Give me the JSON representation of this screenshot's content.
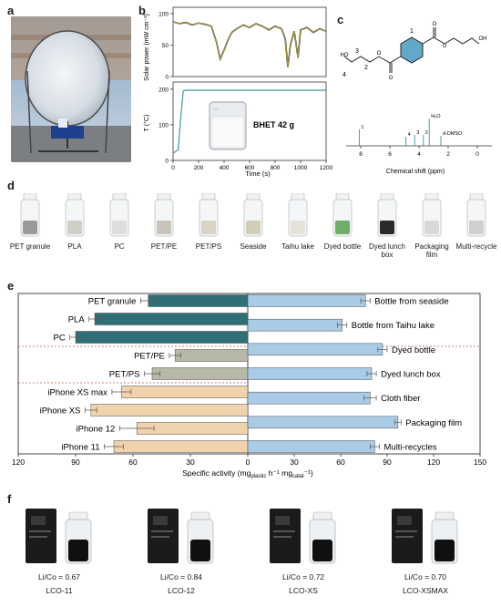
{
  "panels": {
    "a": "a",
    "b": "b",
    "c": "c",
    "d": "d",
    "e": "e",
    "f": "f"
  },
  "panel_b": {
    "top_ylabel": "Solar power (mW cm⁻²)",
    "top_yticks": [
      "100",
      "50",
      "0"
    ],
    "bottom_ylabel": "T (°C)",
    "bottom_yticks": [
      "200",
      "100",
      "0"
    ],
    "xticks": [
      "0",
      "200",
      "400",
      "600",
      "800",
      "1000",
      "1200"
    ],
    "xlabel": "Time (s)",
    "inset_label": "BHET 42 g"
  },
  "panel_c": {
    "atom_labels": [
      "1",
      "2",
      "3",
      "4"
    ],
    "peak_labels": [
      "1",
      "4",
      "3",
      "2",
      "H₂O",
      "d-DMSO"
    ],
    "xticks": [
      "8",
      "6",
      "4",
      "2",
      "0"
    ],
    "xlabel": "Chemical shift (ppm)"
  },
  "panel_d": {
    "vials": [
      "PET granule",
      "PLA",
      "PC",
      "PET/PE",
      "PET/PS",
      "Seaside",
      "Taihu lake",
      "Dyed bottle",
      "Dyed lunch box",
      "Packaging film",
      "Multi-recycle"
    ]
  },
  "chart_data": [
    {
      "type": "line",
      "panel": "b-top",
      "xlabel": "Time (s)",
      "ylabel": "Solar power (mW cm⁻²)",
      "xlim": [
        0,
        1200
      ],
      "ylim": [
        0,
        110
      ],
      "series": [
        {
          "x": [
            0,
            50,
            100,
            150,
            200,
            250,
            300,
            340,
            370,
            400,
            430,
            460,
            500,
            550,
            600,
            650,
            700,
            750,
            800,
            850,
            880,
            900,
            920,
            950,
            980,
            1000,
            1050,
            1100,
            1150,
            1200
          ],
          "values": [
            87,
            84,
            86,
            82,
            85,
            83,
            80,
            55,
            28,
            42,
            58,
            70,
            76,
            82,
            78,
            84,
            80,
            74,
            80,
            76,
            60,
            15,
            50,
            72,
            30,
            74,
            78,
            70,
            76,
            72
          ]
        }
      ]
    },
    {
      "type": "line",
      "panel": "b-bottom",
      "xlabel": "Time (s)",
      "ylabel": "T (°C)",
      "xlim": [
        0,
        1200
      ],
      "ylim": [
        0,
        220
      ],
      "series": [
        {
          "x": [
            0,
            40,
            60,
            80,
            100,
            200,
            600,
            1000,
            1200
          ],
          "values": [
            20,
            30,
            120,
            195,
            197,
            197,
            197,
            197,
            197
          ]
        }
      ]
    },
    {
      "type": "bar",
      "panel": "e-left",
      "orientation": "horizontal",
      "categories": [
        "PET granule",
        "PLA",
        "PC",
        "PET/PE",
        "PET/PS",
        "iPhone XS max",
        "iPhone XS",
        "iPhone 12",
        "iPhone 11"
      ],
      "values": [
        52,
        80,
        90,
        38,
        50,
        66,
        82,
        58,
        70
      ],
      "errors": [
        4,
        3,
        3,
        3,
        4,
        5,
        3,
        9,
        5
      ],
      "colors": [
        "#2f6f75",
        "#2f6f75",
        "#2f6f75",
        "#b7b8a6",
        "#b7b8a6",
        "#f0d3ac",
        "#f0d3ac",
        "#f0d3ac",
        "#f0d3ac"
      ],
      "xlim": [
        120,
        0
      ],
      "xticks": [
        "120",
        "90",
        "60",
        "30",
        "0"
      ]
    },
    {
      "type": "bar",
      "panel": "e-right",
      "orientation": "horizontal",
      "categories": [
        "Bottle from seaside",
        "Bottle from Taihu lake",
        "Dyed bottle",
        "Dyed lunch box",
        "Cloth fiber",
        "Packaging film",
        "Multi-recycles"
      ],
      "values": [
        76,
        61,
        87,
        80,
        79,
        97,
        82
      ],
      "errors": [
        3,
        3,
        3,
        3,
        4,
        2,
        3
      ],
      "color": "#a9cbe6",
      "xlim": [
        0,
        150
      ],
      "xticks": [
        "30",
        "60",
        "90",
        "120",
        "150"
      ]
    }
  ],
  "panel_e": {
    "xlabel": "Specific activity (mg",
    "xlabel_sub1": "plastic",
    "xlabel_mid": " h⁻¹ mg",
    "xlabel_sub2": "catal",
    "xlabel_end": "⁻¹)"
  },
  "panel_f": {
    "batteries": [
      {
        "ratio": "Li/Co = 0.67",
        "name": "LCO-11"
      },
      {
        "ratio": "Li/Co = 0.84",
        "name": "LCO-12"
      },
      {
        "ratio": "Li/Co = 0.72",
        "name": "LCO-XS"
      },
      {
        "ratio": "Li/Co = 0.70",
        "name": "LCO-XSMAX"
      }
    ]
  },
  "colors": {
    "petrol": "#2f6f75",
    "grey": "#b7b8a6",
    "tan": "#f0d3ac",
    "lightblue": "#a9cbe6",
    "divider": "#d05050"
  }
}
